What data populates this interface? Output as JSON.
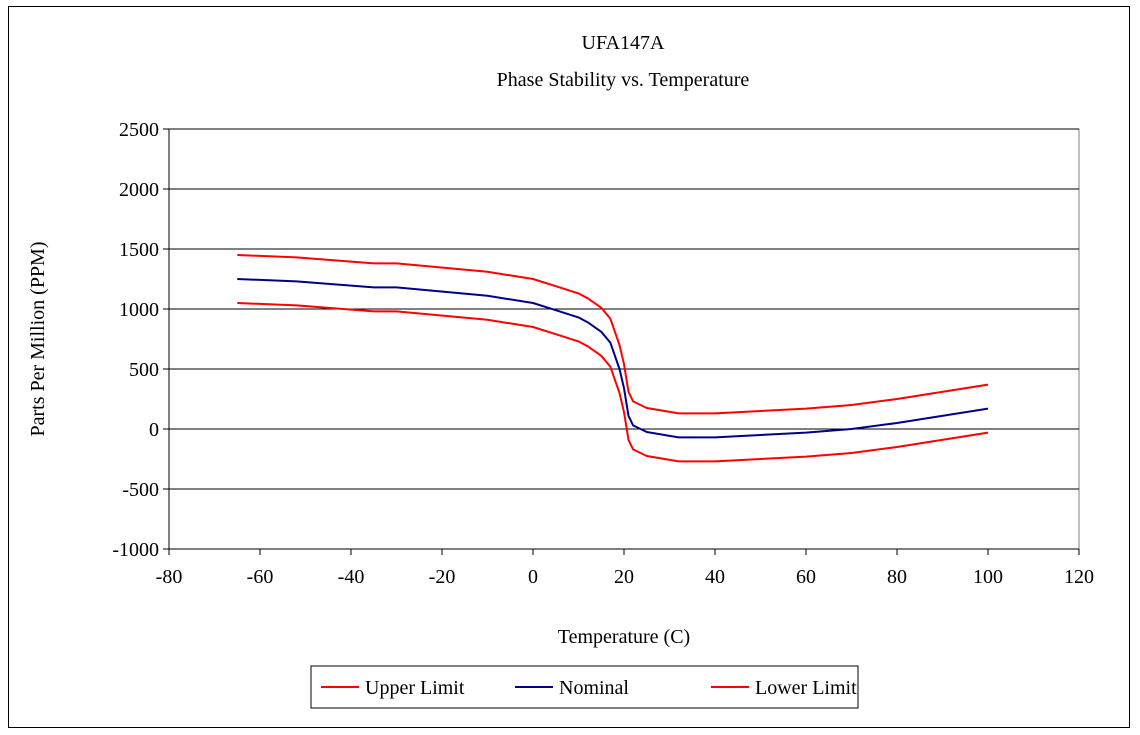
{
  "chart_data": {
    "type": "line",
    "title": "UFA147A",
    "subtitle": "Phase Stability vs. Temperature",
    "xlabel": "Temperature (C)",
    "ylabel": "Parts Per Million (PPM)",
    "xlim": [
      -80,
      120
    ],
    "ylim": [
      -1000,
      2500
    ],
    "xticks": [
      -80,
      -60,
      -40,
      -20,
      0,
      20,
      40,
      60,
      80,
      100,
      120
    ],
    "yticks": [
      -1000,
      -500,
      0,
      500,
      1000,
      1500,
      2000,
      2500
    ],
    "grid": "horizontal major gridlines",
    "legend_position": "bottom",
    "series": [
      {
        "name": "Upper Limit",
        "color": "#ff0000",
        "x": [
          -65,
          -52,
          -35,
          -30,
          -10,
          0,
          5,
          10,
          12,
          15,
          17,
          19,
          20,
          21,
          22,
          25,
          32,
          40,
          60,
          70,
          80,
          100
        ],
        "y": [
          1450,
          1430,
          1380,
          1380,
          1310,
          1250,
          1190,
          1130,
          1090,
          1010,
          920,
          700,
          540,
          310,
          230,
          175,
          130,
          130,
          170,
          200,
          250,
          370
        ]
      },
      {
        "name": "Nominal",
        "color": "#00008b",
        "x": [
          -65,
          -52,
          -35,
          -30,
          -10,
          0,
          5,
          10,
          12,
          15,
          17,
          19,
          20,
          21,
          22,
          25,
          32,
          40,
          60,
          70,
          80,
          100
        ],
        "y": [
          1250,
          1230,
          1180,
          1180,
          1110,
          1050,
          990,
          930,
          890,
          810,
          720,
          500,
          340,
          110,
          30,
          -25,
          -70,
          -70,
          -30,
          0,
          50,
          170
        ]
      },
      {
        "name": "Lower Limit",
        "color": "#ff0000",
        "x": [
          -65,
          -52,
          -35,
          -30,
          -10,
          0,
          5,
          10,
          12,
          15,
          17,
          19,
          20,
          21,
          22,
          25,
          32,
          40,
          60,
          70,
          80,
          100
        ],
        "y": [
          1050,
          1030,
          980,
          980,
          910,
          850,
          790,
          730,
          690,
          610,
          520,
          300,
          140,
          -90,
          -170,
          -225,
          -270,
          -270,
          -230,
          -200,
          -150,
          -30
        ]
      }
    ]
  }
}
